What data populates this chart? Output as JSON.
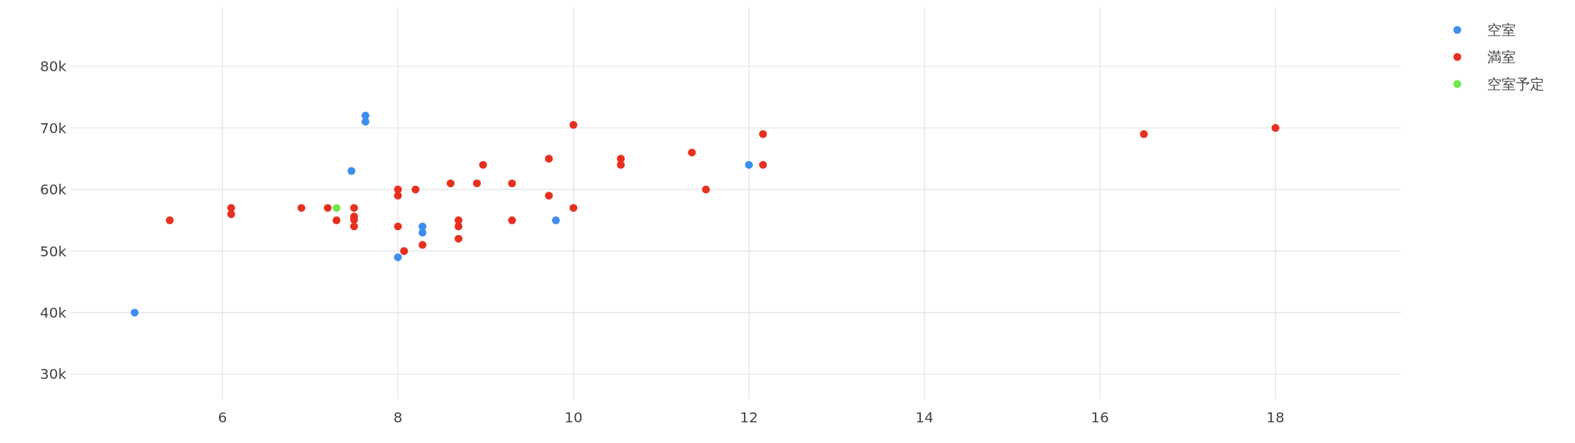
{
  "chart_data": {
    "type": "scatter",
    "xlim": [
      4.27,
      19.43
    ],
    "ylim": [
      26000,
      89500
    ],
    "xticks": [
      6,
      8,
      10,
      12,
      14,
      16,
      18
    ],
    "yticks": [
      {
        "value": 30000,
        "label": "30k"
      },
      {
        "value": 40000,
        "label": "40k"
      },
      {
        "value": 50000,
        "label": "50k"
      },
      {
        "value": 60000,
        "label": "60k"
      },
      {
        "value": 70000,
        "label": "70k"
      },
      {
        "value": 80000,
        "label": "80k"
      }
    ],
    "grid": true,
    "legend": "top right",
    "marker": "circle",
    "series": [
      {
        "name": "空室",
        "color": "#3d8ef0",
        "x": [
          5.0,
          7.63,
          7.63,
          7.47,
          8.0,
          8.28,
          8.28,
          9.8,
          12.0
        ],
        "values": [
          40000,
          72000,
          71000,
          63000,
          49000,
          54000,
          53000,
          55000,
          64000
        ]
      },
      {
        "name": "満室",
        "color": "#e8301f",
        "x": [
          5.4,
          6.1,
          6.1,
          6.9,
          7.2,
          7.3,
          7.5,
          7.5,
          7.5,
          7.5,
          8.0,
          8.0,
          8.0,
          8.07,
          8.2,
          8.28,
          8.6,
          8.69,
          8.69,
          8.69,
          8.9,
          8.97,
          9.3,
          9.3,
          9.72,
          9.72,
          10.0,
          10.0,
          10.54,
          10.54,
          11.35,
          11.51,
          12.16,
          12.16,
          16.5,
          18.0
        ],
        "values": [
          55000,
          57000,
          56000,
          57000,
          57000,
          55000,
          57000,
          55600,
          55100,
          54000,
          60000,
          59000,
          54000,
          50000,
          60000,
          51000,
          61000,
          55000,
          54000,
          52000,
          61000,
          64000,
          61000,
          55000,
          65000,
          59000,
          70500,
          57000,
          65000,
          64000,
          66000,
          60000,
          69000,
          64000,
          69000,
          70000
        ]
      },
      {
        "name": "空室予定",
        "color": "#6ee84a",
        "x": [
          7.3
        ],
        "values": [
          57000
        ]
      }
    ]
  }
}
